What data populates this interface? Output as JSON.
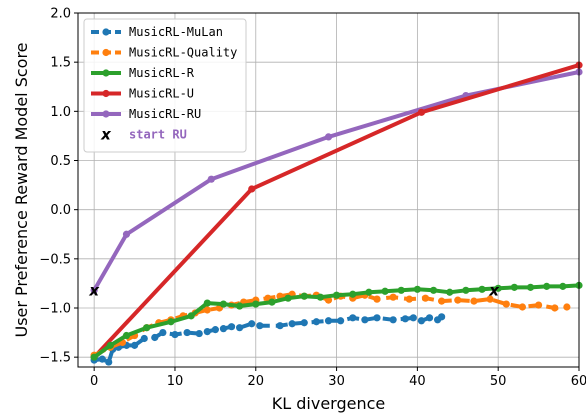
{
  "chart_data": {
    "type": "line",
    "xlabel": "KL divergence",
    "ylabel": "User Preference Reward Model Score",
    "xlim": [
      -2,
      60
    ],
    "ylim": [
      -1.6,
      2.0
    ],
    "x_ticks": [
      0,
      10,
      20,
      30,
      40,
      50,
      60
    ],
    "x_tick_labels": [
      "0",
      "10",
      "20",
      "30",
      "40",
      "50",
      "60"
    ],
    "y_ticks": [
      -1.5,
      -1.0,
      -0.5,
      0.0,
      0.5,
      1.0,
      1.5,
      2.0
    ],
    "y_tick_labels": [
      "−1.5",
      "−1.0",
      "−0.5",
      "0.0",
      "0.5",
      "1.0",
      "1.5",
      "2.0"
    ],
    "grid": true,
    "legend_position": "top-left",
    "series": [
      {
        "name": "MusicRL-MuLan",
        "color": "#1f77b4",
        "style": "dashed",
        "x": [
          0.0,
          1.0,
          1.8,
          2.3,
          3.0,
          4.0,
          5.0,
          6.2,
          7.5,
          8.5,
          10.0,
          11.5,
          13.0,
          14.0,
          15.0,
          16.0,
          17.0,
          18.0,
          19.5,
          20.5,
          23.0,
          24.5,
          26.0,
          27.5,
          29.0,
          30.5,
          32.0,
          33.5,
          35.0,
          37.0,
          38.5,
          39.5,
          40.5,
          41.5,
          42.5,
          43.0
        ],
        "y": [
          -1.53,
          -1.52,
          -1.55,
          -1.42,
          -1.4,
          -1.38,
          -1.38,
          -1.31,
          -1.3,
          -1.25,
          -1.27,
          -1.25,
          -1.26,
          -1.24,
          -1.22,
          -1.21,
          -1.19,
          -1.2,
          -1.16,
          -1.18,
          -1.18,
          -1.16,
          -1.15,
          -1.14,
          -1.13,
          -1.13,
          -1.1,
          -1.12,
          -1.1,
          -1.12,
          -1.11,
          -1.1,
          -1.13,
          -1.1,
          -1.12,
          -1.09
        ]
      },
      {
        "name": "MusicRL-Quality",
        "color": "#ff7f0e",
        "style": "dashed",
        "x": [
          0.0,
          2.0,
          3.5,
          5.0,
          6.5,
          8.0,
          9.5,
          11.0,
          12.5,
          14.0,
          15.5,
          17.0,
          18.5,
          20.0,
          21.5,
          23.0,
          24.5,
          26.0,
          27.5,
          29.0,
          30.5,
          32.0,
          33.5,
          35.0,
          37.0,
          39.0,
          41.0,
          43.0,
          45.0,
          47.0,
          49.0,
          51.0,
          53.0,
          55.0,
          57.0,
          58.5
        ],
        "y": [
          -1.48,
          -1.4,
          -1.35,
          -1.28,
          -1.2,
          -1.15,
          -1.12,
          -1.08,
          -1.05,
          -1.02,
          -1.0,
          -0.97,
          -0.94,
          -0.92,
          -0.9,
          -0.88,
          -0.86,
          -0.88,
          -0.87,
          -0.92,
          -0.88,
          -0.9,
          -0.87,
          -0.91,
          -0.89,
          -0.91,
          -0.9,
          -0.93,
          -0.92,
          -0.93,
          -0.91,
          -0.96,
          -0.99,
          -0.97,
          -1.0,
          -0.99
        ]
      },
      {
        "name": "MusicRL-R",
        "color": "#2ca02c",
        "style": "solid",
        "x": [
          0.0,
          2.0,
          4.0,
          6.5,
          9.5,
          12.0,
          14.0,
          16.0,
          18.0,
          20.0,
          22.0,
          24.0,
          26.0,
          28.0,
          30.0,
          32.0,
          34.0,
          36.0,
          38.0,
          40.0,
          42.0,
          44.0,
          46.0,
          48.0,
          50.0,
          52.0,
          54.0,
          56.0,
          58.0,
          60.0
        ],
        "y": [
          -1.5,
          -1.38,
          -1.28,
          -1.2,
          -1.14,
          -1.08,
          -0.95,
          -0.96,
          -0.98,
          -0.96,
          -0.94,
          -0.9,
          -0.88,
          -0.89,
          -0.87,
          -0.86,
          -0.84,
          -0.83,
          -0.82,
          -0.81,
          -0.82,
          -0.84,
          -0.82,
          -0.81,
          -0.8,
          -0.79,
          -0.79,
          -0.78,
          -0.78,
          -0.77
        ]
      },
      {
        "name": "MusicRL-U",
        "color": "#d62728",
        "style": "solid",
        "x": [
          0.0,
          19.5,
          40.5,
          60.0
        ],
        "y": [
          -1.5,
          0.21,
          0.99,
          1.47
        ]
      },
      {
        "name": "MusicRL-RU",
        "color": "#9467bd",
        "style": "solid",
        "x": [
          0.0,
          4.0,
          14.5,
          29.0,
          46.0,
          60.0
        ],
        "y": [
          -0.82,
          -0.25,
          0.31,
          0.74,
          1.16,
          1.4
        ]
      }
    ],
    "annotations": [
      {
        "name": "start RU",
        "marker": "x",
        "color": "#000000",
        "label_color": "#9467bd",
        "points": [
          {
            "x": 0.0,
            "y": -0.82
          },
          {
            "x": 49.5,
            "y": -0.82
          }
        ]
      }
    ]
  }
}
